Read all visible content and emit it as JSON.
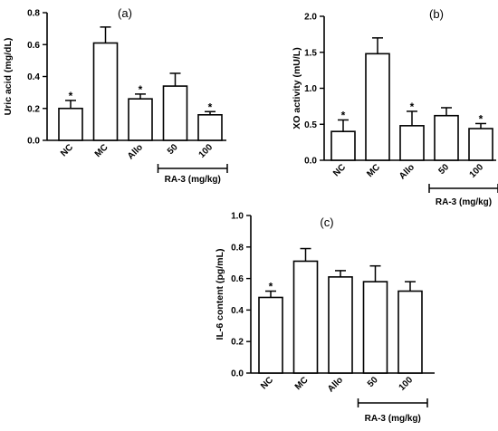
{
  "chart_data": [
    {
      "type": "bar",
      "panel_label": "(a)",
      "ylabel": "Uric acid (mg/dL)",
      "ylim": [
        0,
        0.8
      ],
      "yticks": [
        "0.0",
        "0.2",
        "0.4",
        "0.6",
        "0.8"
      ],
      "categories": [
        "NC",
        "MC",
        "Allo",
        "50",
        "100"
      ],
      "values": [
        0.2,
        0.61,
        0.26,
        0.34,
        0.16
      ],
      "errors": [
        0.05,
        0.1,
        0.03,
        0.08,
        0.02
      ],
      "significance": [
        "*",
        "",
        "*",
        "",
        "*"
      ],
      "group_label": "RA-3 (mg/kg)"
    },
    {
      "type": "bar",
      "panel_label": "(b)",
      "ylabel": "XO activity (mU/L)",
      "ylim": [
        0,
        2.0
      ],
      "yticks": [
        "0.0",
        "0.5",
        "1.0",
        "1.5",
        "2.0"
      ],
      "categories": [
        "NC",
        "MC",
        "Allo",
        "50",
        "100"
      ],
      "values": [
        0.4,
        1.48,
        0.48,
        0.62,
        0.44
      ],
      "errors": [
        0.16,
        0.22,
        0.2,
        0.11,
        0.07
      ],
      "significance": [
        "*",
        "",
        "*",
        "",
        "*"
      ],
      "group_label": "RA-3 (mg/kg)"
    },
    {
      "type": "bar",
      "panel_label": "(c)",
      "ylabel": "IL-6 content (pg/mL)",
      "ylim": [
        0,
        1.0
      ],
      "yticks": [
        "0.0",
        "0.2",
        "0.4",
        "0.6",
        "0.8",
        "1.0"
      ],
      "categories": [
        "NC",
        "MC",
        "Allo",
        "50",
        "100"
      ],
      "values": [
        0.48,
        0.71,
        0.61,
        0.58,
        0.52
      ],
      "errors": [
        0.04,
        0.08,
        0.04,
        0.1,
        0.06
      ],
      "significance": [
        "*",
        "",
        "",
        "",
        ""
      ],
      "group_label": "RA-3 (mg/kg)"
    }
  ]
}
